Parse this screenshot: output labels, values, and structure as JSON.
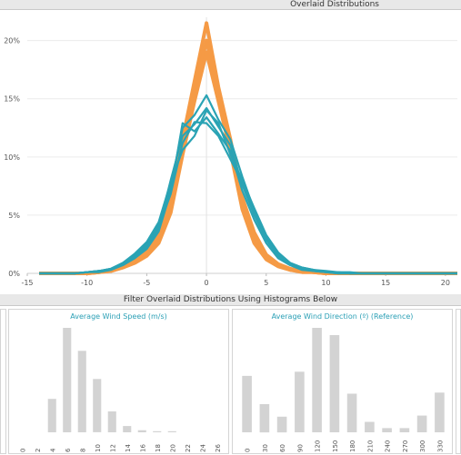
{
  "header": {
    "title": "Overlaid Distributions"
  },
  "filter_header": {
    "title": "Filter Overlaid Distributions Using Histograms Below"
  },
  "colors": {
    "orange": "#f59a45",
    "teal": "#2aa3b4",
    "bar": "#d3d3d3",
    "accent_text": "#2a9fb5"
  },
  "chart_data": [
    {
      "type": "line",
      "title": "Overlaid Distributions",
      "xlim": [
        -15,
        21
      ],
      "ylim": [
        0,
        22
      ],
      "x_ticks": [
        -15,
        -10,
        -5,
        0,
        5,
        10,
        15,
        20
      ],
      "y_ticks": [
        "0%",
        "5%",
        "10%",
        "15%",
        "20%"
      ],
      "y_tick_values": [
        0,
        5,
        10,
        15,
        20
      ],
      "x": [
        -14,
        -13,
        -12,
        -11,
        -10,
        -9,
        -8,
        -7,
        -6,
        -5,
        -4,
        -3,
        -2,
        -1,
        0,
        1,
        2,
        3,
        4,
        5,
        6,
        7,
        8,
        9,
        10,
        11,
        12,
        13,
        14,
        15,
        16,
        17,
        18,
        19,
        20,
        21
      ],
      "series": [
        {
          "color": "orange",
          "values": [
            0,
            0,
            0,
            0,
            0,
            0.1,
            0.3,
            0.6,
            1.1,
            2.0,
            3.5,
            6.5,
            11.5,
            16.5,
            21.5,
            16.0,
            11.5,
            6.5,
            3.5,
            1.6,
            0.8,
            0.4,
            0.2,
            0.1,
            0,
            0,
            0,
            0,
            0,
            0,
            0,
            0,
            0,
            0,
            0,
            0
          ]
        },
        {
          "color": "orange",
          "values": [
            0,
            0,
            0,
            0,
            0,
            0.1,
            0.2,
            0.5,
            1.0,
            1.7,
            3.0,
            5.8,
            10.8,
            15.5,
            20.0,
            15.5,
            11.0,
            6.0,
            3.0,
            1.4,
            0.7,
            0.3,
            0.2,
            0.1,
            0,
            0,
            0,
            0,
            0,
            0,
            0,
            0,
            0,
            0,
            0,
            0
          ]
        },
        {
          "color": "orange",
          "values": [
            0,
            0,
            0,
            0,
            0,
            0.1,
            0.2,
            0.5,
            0.9,
            1.5,
            2.6,
            5.2,
            10.2,
            14.8,
            19.0,
            14.8,
            10.5,
            5.5,
            2.6,
            1.2,
            0.6,
            0.3,
            0.1,
            0.1,
            0,
            0,
            0,
            0,
            0,
            0,
            0,
            0,
            0,
            0,
            0,
            0
          ]
        },
        {
          "color": "teal",
          "values": [
            0,
            0,
            0,
            0,
            0.1,
            0.2,
            0.4,
            0.9,
            1.6,
            2.6,
            4.2,
            7.4,
            12.5,
            13.6,
            15.3,
            13.2,
            11.5,
            8.3,
            5.4,
            3.2,
            1.7,
            0.9,
            0.5,
            0.3,
            0.2,
            0.1,
            0.1,
            0,
            0,
            0,
            0,
            0,
            0,
            0,
            0,
            0
          ]
        },
        {
          "color": "teal",
          "values": [
            0,
            0,
            0,
            0,
            0.1,
            0.2,
            0.4,
            0.8,
            1.4,
            2.3,
            3.9,
            8.0,
            11.8,
            12.8,
            14.2,
            12.6,
            11.0,
            7.6,
            5.0,
            2.9,
            1.5,
            0.8,
            0.4,
            0.2,
            0.1,
            0.1,
            0,
            0,
            0,
            0,
            0,
            0,
            0,
            0,
            0,
            0
          ]
        },
        {
          "color": "teal",
          "values": [
            0,
            0,
            0,
            0,
            0.1,
            0.1,
            0.3,
            0.7,
            1.3,
            2.1,
            3.6,
            7.0,
            12.9,
            12.2,
            13.4,
            12.0,
            10.5,
            7.1,
            4.6,
            2.6,
            1.3,
            0.7,
            0.3,
            0.2,
            0.1,
            0,
            0,
            0,
            0,
            0,
            0,
            0,
            0,
            0,
            0,
            0
          ]
        },
        {
          "color": "teal",
          "values": [
            0,
            0,
            0,
            0,
            0.1,
            0.2,
            0.3,
            0.8,
            1.5,
            2.4,
            4.0,
            6.8,
            11.2,
            13.0,
            12.9,
            11.8,
            9.8,
            7.8,
            5.2,
            3.0,
            1.6,
            0.8,
            0.4,
            0.2,
            0.1,
            0,
            0,
            0,
            0,
            0,
            0,
            0,
            0,
            0,
            0,
            0
          ]
        },
        {
          "color": "teal",
          "values": [
            0,
            0,
            0,
            0,
            0.1,
            0.2,
            0.4,
            0.9,
            1.7,
            2.7,
            4.4,
            7.8,
            10.6,
            11.8,
            14.0,
            12.9,
            10.2,
            8.0,
            5.6,
            3.3,
            1.8,
            0.9,
            0.5,
            0.3,
            0.1,
            0.1,
            0,
            0,
            0,
            0,
            0,
            0,
            0,
            0,
            0,
            0
          ]
        }
      ]
    },
    {
      "type": "bar",
      "title": "Average Wind Speed (m/s)",
      "categories": [
        "0",
        "2",
        "4",
        "6",
        "8",
        "10",
        "12",
        "14",
        "16",
        "18",
        "20",
        "22",
        "24",
        "26"
      ],
      "values": [
        0,
        0,
        32,
        100,
        78,
        51,
        20,
        6,
        2,
        1,
        1,
        0,
        0,
        0
      ]
    },
    {
      "type": "bar",
      "title": "Average Wind Direction (º) (Reference)",
      "categories": [
        "0",
        "30",
        "60",
        "90",
        "120",
        "150",
        "180",
        "210",
        "240",
        "270",
        "300",
        "330"
      ],
      "values": [
        54,
        27,
        15,
        58,
        100,
        93,
        37,
        10,
        4,
        4,
        16,
        38
      ]
    }
  ]
}
